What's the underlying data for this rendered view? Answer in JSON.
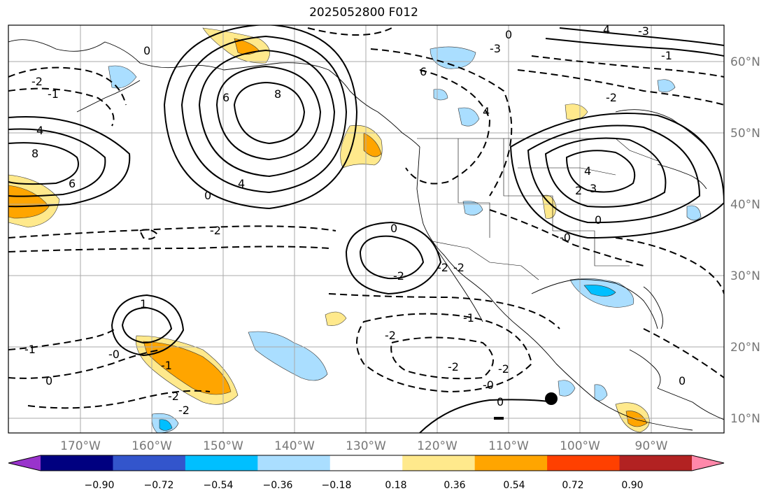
{
  "title": "2025052800 F012",
  "latitude_labels": [
    "60°N",
    "50°N",
    "40°N",
    "30°N",
    "20°N",
    "10°N"
  ],
  "longitude_labels": [
    "170°W",
    "160°W",
    "150°W",
    "140°W",
    "130°W",
    "120°W",
    "110°W",
    "100°W",
    "90°W"
  ],
  "colorbar": {
    "colors": [
      "#9933cc",
      "#000080",
      "#3355cc",
      "#00bfff",
      "#aadeff",
      "#ffffff",
      "#ffe98c",
      "#ffa500",
      "#ff4000",
      "#b22222",
      "#ff88aa"
    ],
    "tick_labels": [
      "−0.90",
      "−0.72",
      "−0.54",
      "−0.36",
      "−0.18",
      "0.18",
      "0.36",
      "0.54",
      "0.72",
      "0.90"
    ]
  },
  "contour_labels": [
    {
      "id": "c1",
      "text": "8"
    },
    {
      "id": "c2",
      "text": "6"
    },
    {
      "id": "c3",
      "text": "4"
    },
    {
      "id": "c4",
      "text": "8"
    },
    {
      "id": "c5",
      "text": "6"
    },
    {
      "id": "c6",
      "text": "4"
    },
    {
      "id": "c7",
      "text": "0"
    },
    {
      "id": "c8",
      "text": "-2"
    },
    {
      "id": "c9",
      "text": "-1"
    },
    {
      "id": "c10",
      "text": "-2"
    },
    {
      "id": "c11",
      "text": "0"
    },
    {
      "id": "c12",
      "text": "6"
    },
    {
      "id": "c13",
      "text": "-2"
    },
    {
      "id": "c14",
      "text": "4"
    },
    {
      "id": "c15",
      "text": "3"
    },
    {
      "id": "c16",
      "text": "0"
    },
    {
      "id": "c17",
      "text": "0"
    },
    {
      "id": "c18",
      "text": "-2"
    },
    {
      "id": "c19",
      "text": "-1"
    },
    {
      "id": "c20",
      "text": "-2"
    },
    {
      "id": "c21",
      "text": "-2"
    },
    {
      "id": "c22",
      "text": "-0"
    },
    {
      "id": "c23",
      "text": "0"
    },
    {
      "id": "c24",
      "text": "-1"
    },
    {
      "id": "c25",
      "text": "0"
    },
    {
      "id": "c26",
      "text": "-0"
    },
    {
      "id": "c27",
      "text": "1"
    },
    {
      "id": "c28",
      "text": "-2"
    },
    {
      "id": "c29",
      "text": "-2"
    },
    {
      "id": "c30",
      "text": "4"
    },
    {
      "id": "c31",
      "text": "-3"
    },
    {
      "id": "c32",
      "text": "0"
    },
    {
      "id": "c33",
      "text": "2"
    },
    {
      "id": "c34",
      "text": "4"
    },
    {
      "id": "c35",
      "text": "-2"
    },
    {
      "id": "c36",
      "text": "-2"
    },
    {
      "id": "c37",
      "text": "0"
    },
    {
      "id": "c38",
      "text": "-1"
    },
    {
      "id": "c39",
      "text": "-3"
    },
    {
      "id": "c40",
      "text": "-0"
    },
    {
      "id": "c41",
      "text": "-1"
    },
    {
      "id": "c42",
      "text": "-2"
    }
  ],
  "marker_icon": "black-circle-marker"
}
